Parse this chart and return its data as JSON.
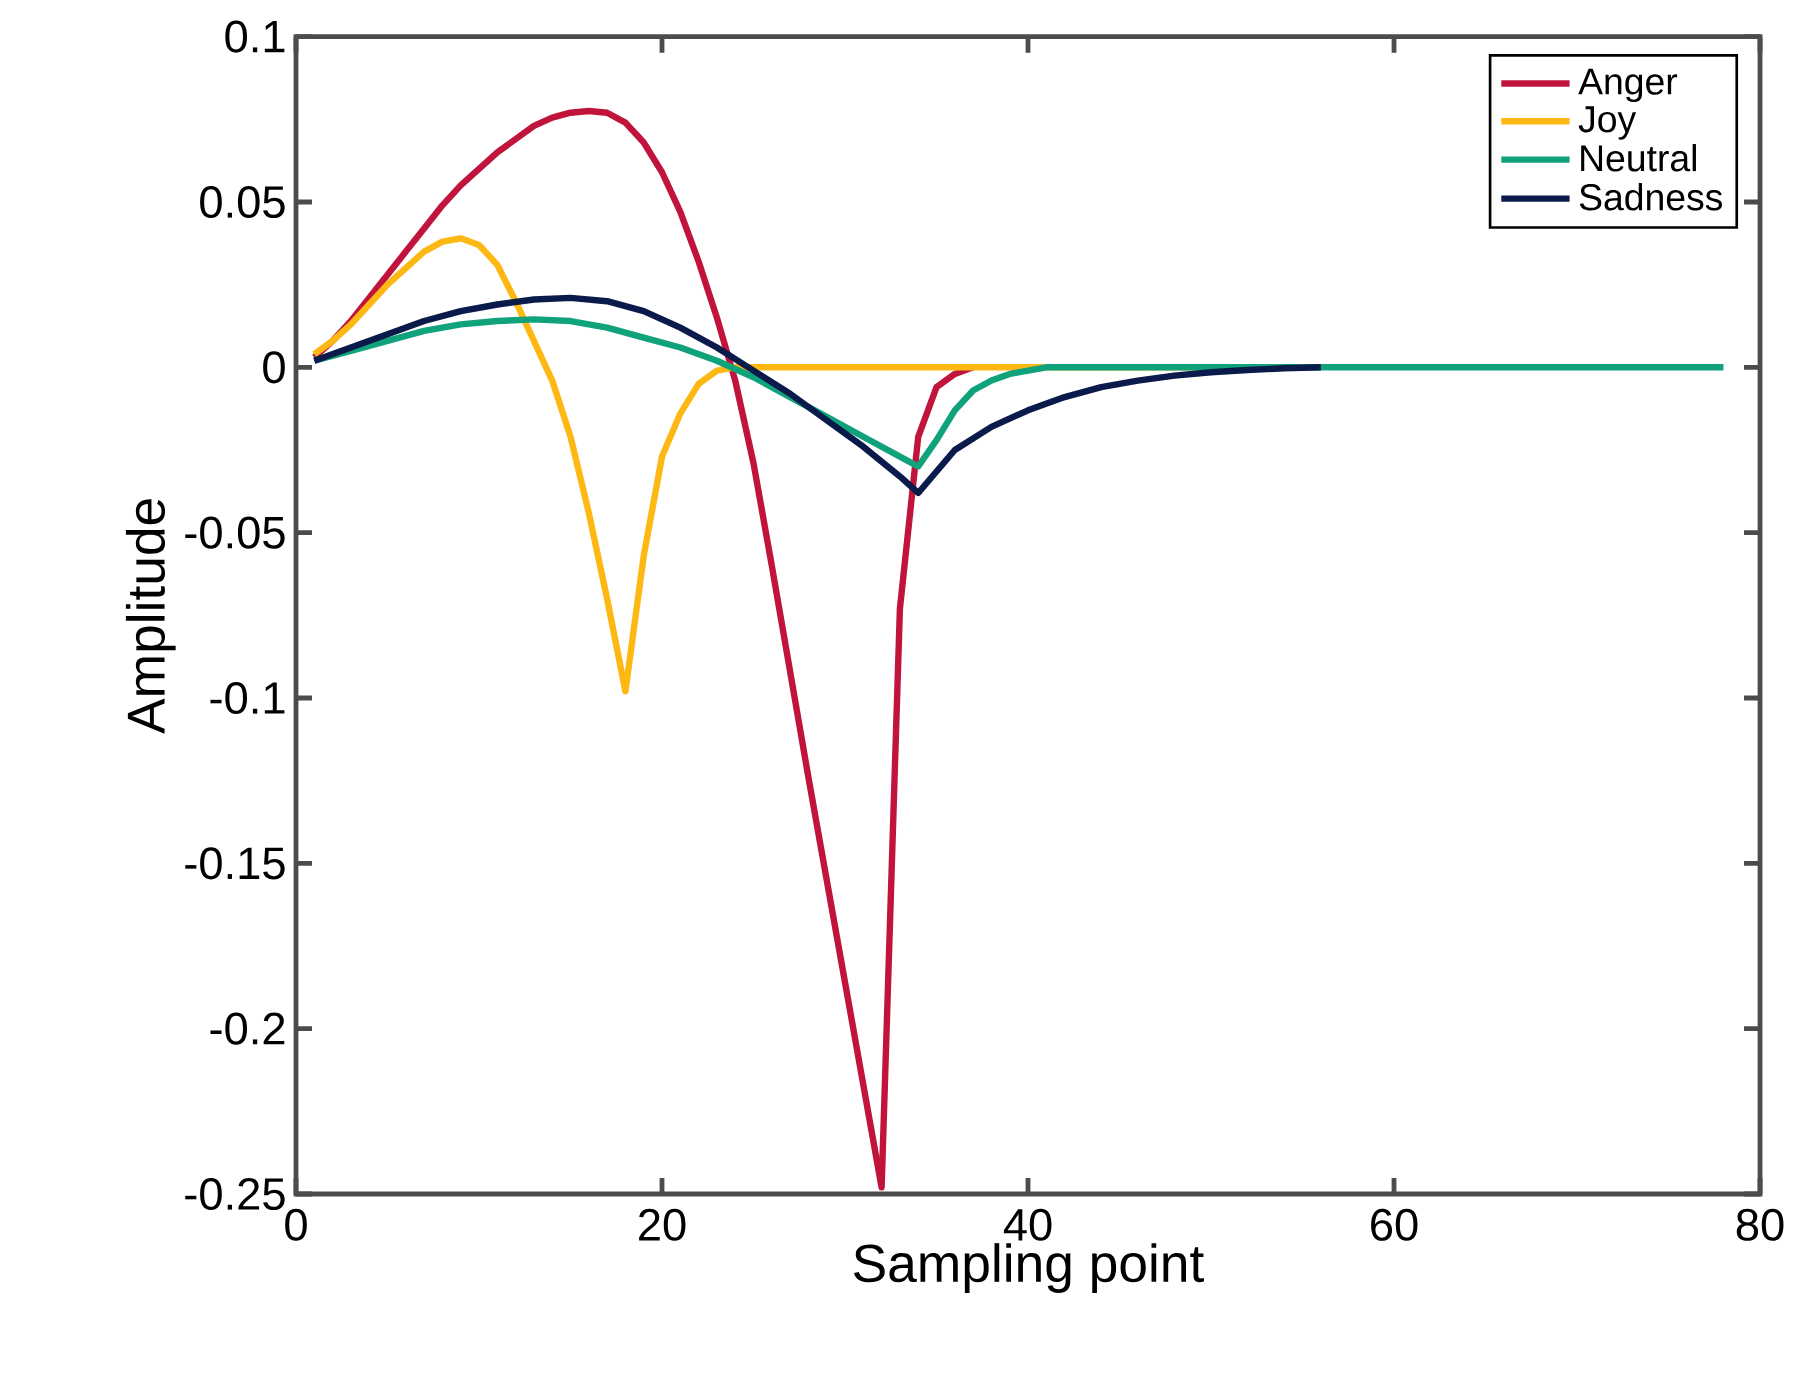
{
  "chart_data": {
    "type": "line",
    "xlabel": "Sampling point",
    "ylabel": "Amplitude",
    "xlim": [
      0,
      80
    ],
    "ylim": [
      -0.25,
      0.1
    ],
    "xticks": [
      0,
      20,
      40,
      60,
      80
    ],
    "yticks": [
      -0.25,
      -0.2,
      -0.15,
      -0.1,
      -0.05,
      0,
      0.05,
      0.1
    ],
    "grid": false,
    "legend": "top right",
    "line_style": "solid",
    "marker": "none",
    "series": [
      {
        "name": "Anger",
        "color": "#c0143c",
        "x": [
          1,
          2,
          3,
          4,
          5,
          6,
          7,
          8,
          9,
          10,
          11,
          12,
          13,
          14,
          15,
          16,
          17,
          18,
          19,
          20,
          21,
          22,
          23,
          24,
          25,
          26,
          27,
          28,
          29,
          30,
          31,
          32,
          33,
          34,
          35,
          36,
          37
        ],
        "values": [
          0.003,
          0.008,
          0.014,
          0.021,
          0.028,
          0.035,
          0.042,
          0.049,
          0.055,
          0.06,
          0.065,
          0.069,
          0.073,
          0.0755,
          0.077,
          0.0775,
          0.077,
          0.074,
          0.068,
          0.059,
          0.047,
          0.032,
          0.015,
          -0.004,
          -0.029,
          -0.06,
          -0.092,
          -0.124,
          -0.155,
          -0.186,
          -0.217,
          -0.248,
          -0.073,
          -0.021,
          -0.006,
          -0.002,
          0
        ]
      },
      {
        "name": "Joy",
        "color": "#fdb813",
        "x": [
          1,
          2,
          3,
          4,
          5,
          6,
          7,
          8,
          9,
          10,
          11,
          12,
          13,
          14,
          15,
          16,
          17,
          18,
          19,
          20,
          21,
          22,
          23,
          24,
          30,
          40,
          50,
          55
        ],
        "values": [
          0.004,
          0.008,
          0.013,
          0.019,
          0.025,
          0.03,
          0.035,
          0.038,
          0.039,
          0.037,
          0.031,
          0.02,
          0.008,
          -0.004,
          -0.021,
          -0.044,
          -0.07,
          -0.098,
          -0.057,
          -0.027,
          -0.014,
          -0.005,
          -0.001,
          0,
          0,
          0,
          0,
          0
        ]
      },
      {
        "name": "Neutral",
        "color": "#10a27b",
        "x": [
          1,
          3,
          5,
          7,
          9,
          11,
          13,
          15,
          17,
          19,
          21,
          23,
          25,
          27,
          29,
          31,
          33,
          34,
          35,
          36,
          37,
          38,
          39,
          40,
          41,
          50,
          60,
          70,
          78
        ],
        "values": [
          0.002,
          0.005,
          0.008,
          0.011,
          0.013,
          0.014,
          0.0145,
          0.014,
          0.012,
          0.009,
          0.006,
          0.002,
          -0.003,
          -0.009,
          -0.015,
          -0.021,
          -0.027,
          -0.03,
          -0.022,
          -0.013,
          -0.007,
          -0.004,
          -0.002,
          -0.001,
          0,
          0,
          0,
          0,
          0
        ]
      },
      {
        "name": "Sadness",
        "color": "#0a1a4a",
        "x": [
          1,
          3,
          5,
          7,
          9,
          11,
          13,
          15,
          17,
          19,
          21,
          23,
          25,
          27,
          29,
          31,
          33,
          34,
          36,
          38,
          40,
          42,
          44,
          46,
          48,
          50,
          52,
          54,
          56
        ],
        "values": [
          0.002,
          0.006,
          0.01,
          0.014,
          0.017,
          0.019,
          0.0205,
          0.021,
          0.02,
          0.017,
          0.012,
          0.006,
          -0.001,
          -0.008,
          -0.016,
          -0.024,
          -0.033,
          -0.038,
          -0.025,
          -0.018,
          -0.013,
          -0.009,
          -0.006,
          -0.004,
          -0.0025,
          -0.0015,
          -0.0008,
          -0.0003,
          0
        ]
      }
    ]
  }
}
